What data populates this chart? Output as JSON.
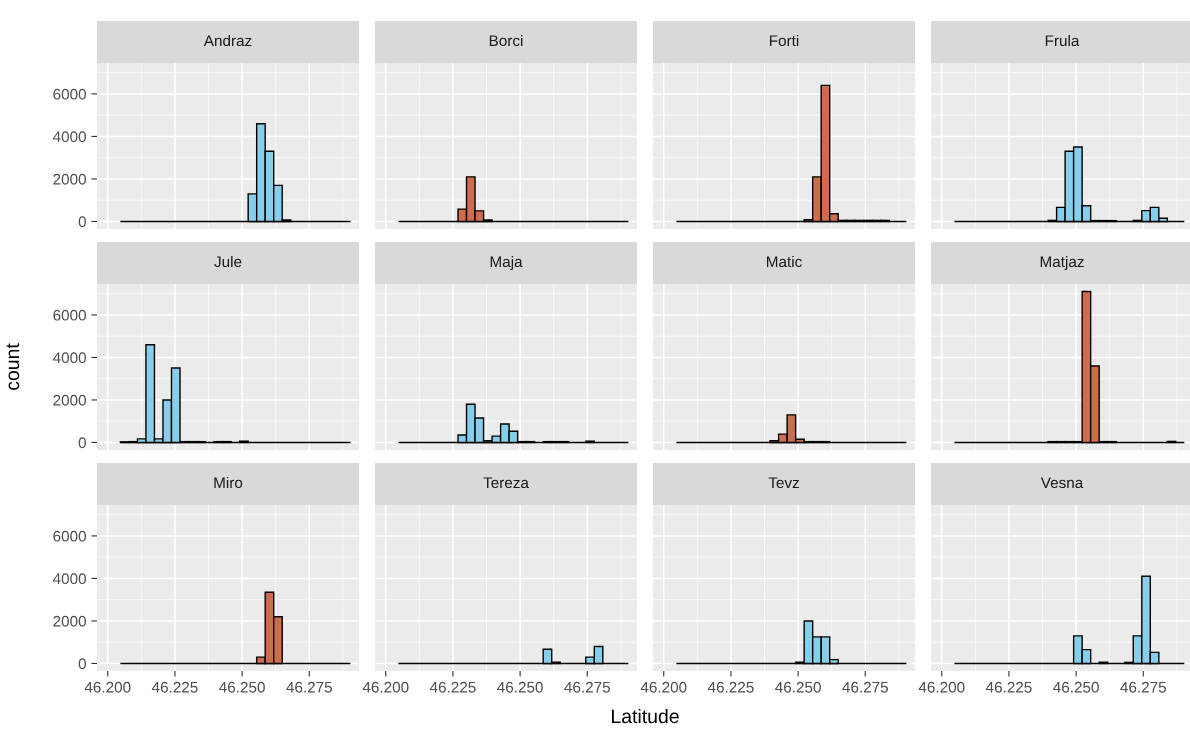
{
  "chart_data": [
    {
      "type": "histogram",
      "title": "Andraz",
      "color": "#87ceeb",
      "tick_labels": "y",
      "bins": [
        46.2047,
        46.20787,
        46.21104,
        46.21421,
        46.21738,
        46.22055,
        46.22372,
        46.22689,
        46.23006,
        46.23323,
        46.2364,
        46.23957,
        46.24274,
        46.24591,
        46.24908,
        46.25225,
        46.25542,
        46.25859,
        46.26176,
        46.26493,
        46.2681,
        46.27127,
        46.27444,
        46.27761,
        46.28078,
        46.28395,
        46.28712,
        46.29029
      ],
      "values": [
        0,
        0,
        0,
        0,
        0,
        0,
        0,
        0,
        0,
        0,
        0,
        0,
        0,
        0,
        0,
        1300,
        4600,
        3300,
        1700,
        70,
        0,
        0,
        0,
        0,
        0,
        0,
        0
      ],
      "xlim": [
        46.196,
        46.2935
      ],
      "xticks": [
        46.2,
        46.225,
        46.25,
        46.275
      ],
      "ylim": [
        -355,
        7455
      ],
      "yticks": [
        0,
        2000,
        4000,
        6000
      ],
      "grid": true
    },
    {
      "type": "histogram",
      "title": "Borci",
      "color": "#cd6c4e",
      "tick_labels": false,
      "bins": [
        46.2047,
        46.20787,
        46.21104,
        46.21421,
        46.21738,
        46.22055,
        46.22372,
        46.22689,
        46.23006,
        46.23323,
        46.2364,
        46.23957,
        46.24274,
        46.24591,
        46.24908,
        46.25225,
        46.25542,
        46.25859,
        46.26176,
        46.26493,
        46.2681,
        46.27127,
        46.27444,
        46.27761,
        46.28078,
        46.28395,
        46.28712,
        46.29029
      ],
      "values": [
        0,
        0,
        0,
        0,
        0,
        0,
        0,
        580,
        2100,
        500,
        70,
        0,
        0,
        0,
        0,
        0,
        0,
        0,
        0,
        0,
        0,
        0,
        0,
        0,
        0,
        0,
        0
      ],
      "xlim": [
        46.196,
        46.2935
      ],
      "xticks": [
        46.2,
        46.225,
        46.25,
        46.275
      ],
      "ylim": [
        -355,
        7455
      ],
      "yticks": [
        0,
        2000,
        4000,
        6000
      ],
      "grid": true
    },
    {
      "type": "histogram",
      "title": "Forti",
      "color": "#cd6c4e",
      "tick_labels": false,
      "bins": [
        46.2047,
        46.20787,
        46.21104,
        46.21421,
        46.21738,
        46.22055,
        46.22372,
        46.22689,
        46.23006,
        46.23323,
        46.2364,
        46.23957,
        46.24274,
        46.24591,
        46.24908,
        46.25225,
        46.25542,
        46.25859,
        46.26176,
        46.26493,
        46.2681,
        46.27127,
        46.27444,
        46.27761,
        46.28078,
        46.28395,
        46.28712,
        46.29029
      ],
      "values": [
        0,
        0,
        0,
        0,
        0,
        0,
        0,
        0,
        0,
        0,
        0,
        0,
        0,
        0,
        0,
        80,
        2100,
        6400,
        360,
        50,
        50,
        50,
        50,
        50,
        50,
        0,
        0
      ],
      "xlim": [
        46.196,
        46.2935
      ],
      "xticks": [
        46.2,
        46.225,
        46.25,
        46.275
      ],
      "ylim": [
        -355,
        7455
      ],
      "yticks": [
        0,
        2000,
        4000,
        6000
      ],
      "grid": true
    },
    {
      "type": "histogram",
      "title": "Frula",
      "color": "#87ceeb",
      "tick_labels": false,
      "bins": [
        46.2047,
        46.20787,
        46.21104,
        46.21421,
        46.21738,
        46.22055,
        46.22372,
        46.22689,
        46.23006,
        46.23323,
        46.2364,
        46.23957,
        46.24274,
        46.24591,
        46.24908,
        46.25225,
        46.25542,
        46.25859,
        46.26176,
        46.26493,
        46.2681,
        46.27127,
        46.27444,
        46.27761,
        46.28078,
        46.28395,
        46.28712,
        46.29029
      ],
      "values": [
        0,
        0,
        0,
        0,
        0,
        0,
        0,
        0,
        0,
        0,
        0,
        50,
        660,
        3300,
        3500,
        740,
        40,
        40,
        40,
        0,
        0,
        50,
        510,
        660,
        150,
        0,
        0
      ],
      "xlim": [
        46.196,
        46.2935
      ],
      "xticks": [
        46.2,
        46.225,
        46.25,
        46.275
      ],
      "ylim": [
        -355,
        7455
      ],
      "yticks": [
        0,
        2000,
        4000,
        6000
      ],
      "grid": true
    },
    {
      "type": "histogram",
      "title": "Jule",
      "ylabel": "count",
      "color": "#87ceeb",
      "tick_labels": "y",
      "bins": [
        46.2047,
        46.20787,
        46.21104,
        46.21421,
        46.21738,
        46.22055,
        46.22372,
        46.22689,
        46.23006,
        46.23323,
        46.2364,
        46.23957,
        46.24274,
        46.24591,
        46.24908,
        46.25225,
        46.25542,
        46.25859,
        46.26176,
        46.26493,
        46.2681,
        46.27127,
        46.27444,
        46.27761,
        46.28078,
        46.28395,
        46.28712,
        46.29029
      ],
      "values": [
        30,
        40,
        170,
        4600,
        170,
        2000,
        3500,
        40,
        40,
        40,
        0,
        40,
        40,
        0,
        60,
        0,
        0,
        0,
        0,
        0,
        0,
        0,
        0,
        0,
        0,
        0,
        0
      ],
      "xlim": [
        46.196,
        46.2935
      ],
      "xticks": [
        46.2,
        46.225,
        46.25,
        46.275
      ],
      "ylim": [
        -355,
        7455
      ],
      "yticks": [
        0,
        2000,
        4000,
        6000
      ],
      "grid": true
    },
    {
      "type": "histogram",
      "title": "Maja",
      "color": "#87ceeb",
      "tick_labels": false,
      "bins": [
        46.2047,
        46.20787,
        46.21104,
        46.21421,
        46.21738,
        46.22055,
        46.22372,
        46.22689,
        46.23006,
        46.23323,
        46.2364,
        46.23957,
        46.24274,
        46.24591,
        46.24908,
        46.25225,
        46.25542,
        46.25859,
        46.26176,
        46.26493,
        46.2681,
        46.27127,
        46.27444,
        46.27761,
        46.28078,
        46.28395,
        46.28712,
        46.29029
      ],
      "values": [
        0,
        0,
        0,
        0,
        0,
        0,
        0,
        350,
        1800,
        1150,
        80,
        300,
        870,
        530,
        40,
        40,
        0,
        40,
        40,
        40,
        0,
        0,
        60,
        0,
        0,
        0,
        0
      ],
      "xlim": [
        46.196,
        46.2935
      ],
      "xticks": [
        46.2,
        46.225,
        46.25,
        46.275
      ],
      "ylim": [
        -355,
        7455
      ],
      "yticks": [
        0,
        2000,
        4000,
        6000
      ],
      "grid": true
    },
    {
      "type": "histogram",
      "title": "Matic",
      "color": "#cd6c4e",
      "tick_labels": false,
      "bins": [
        46.2047,
        46.20787,
        46.21104,
        46.21421,
        46.21738,
        46.22055,
        46.22372,
        46.22689,
        46.23006,
        46.23323,
        46.2364,
        46.23957,
        46.24274,
        46.24591,
        46.24908,
        46.25225,
        46.25542,
        46.25859,
        46.26176,
        46.26493,
        46.2681,
        46.27127,
        46.27444,
        46.27761,
        46.28078,
        46.28395,
        46.28712,
        46.29029
      ],
      "values": [
        0,
        0,
        0,
        0,
        0,
        0,
        0,
        0,
        0,
        0,
        0,
        80,
        390,
        1300,
        150,
        40,
        40,
        40,
        0,
        0,
        0,
        0,
        0,
        0,
        0,
        0,
        0
      ],
      "xlim": [
        46.196,
        46.2935
      ],
      "xticks": [
        46.2,
        46.225,
        46.25,
        46.275
      ],
      "ylim": [
        -355,
        7455
      ],
      "yticks": [
        0,
        2000,
        4000,
        6000
      ],
      "grid": true
    },
    {
      "type": "histogram",
      "title": "Matjaz",
      "color": "#cd6c4e",
      "tick_labels": false,
      "bins": [
        46.2047,
        46.20787,
        46.21104,
        46.21421,
        46.21738,
        46.22055,
        46.22372,
        46.22689,
        46.23006,
        46.23323,
        46.2364,
        46.23957,
        46.24274,
        46.24591,
        46.24908,
        46.25225,
        46.25542,
        46.25859,
        46.26176,
        46.26493,
        46.2681,
        46.27127,
        46.27444,
        46.27761,
        46.28078,
        46.28395,
        46.28712,
        46.29029
      ],
      "values": [
        0,
        0,
        0,
        0,
        0,
        0,
        0,
        0,
        0,
        0,
        0,
        40,
        40,
        40,
        40,
        7100,
        3600,
        40,
        40,
        0,
        0,
        0,
        0,
        0,
        0,
        50,
        0
      ],
      "xlim": [
        46.196,
        46.2935
      ],
      "xticks": [
        46.2,
        46.225,
        46.25,
        46.275
      ],
      "ylim": [
        -355,
        7455
      ],
      "yticks": [
        0,
        2000,
        4000,
        6000
      ],
      "grid": true
    },
    {
      "type": "histogram",
      "title": "Miro",
      "color": "#cd6c4e",
      "bins": [
        46.2047,
        46.20787,
        46.21104,
        46.21421,
        46.21738,
        46.22055,
        46.22372,
        46.22689,
        46.23006,
        46.23323,
        46.2364,
        46.23957,
        46.24274,
        46.24591,
        46.24908,
        46.25225,
        46.25542,
        46.25859,
        46.26176,
        46.26493,
        46.2681,
        46.27127,
        46.27444,
        46.27761,
        46.28078,
        46.28395,
        46.28712,
        46.29029
      ],
      "values": [
        0,
        0,
        0,
        0,
        0,
        0,
        0,
        0,
        0,
        0,
        0,
        0,
        0,
        0,
        0,
        0,
        300,
        3350,
        2200,
        0,
        0,
        0,
        0,
        0,
        0,
        0,
        0
      ],
      "xlim": [
        46.196,
        46.2935
      ],
      "xticks": [
        {
          "value": 46.2,
          "label": "46.200"
        },
        {
          "value": 46.225,
          "label": "46.225"
        },
        {
          "value": 46.25,
          "label": "46.250"
        },
        {
          "value": 46.275,
          "label": "46.275"
        }
      ],
      "ylim": [
        -355,
        7455
      ],
      "yticks": [
        0,
        2000,
        4000,
        6000
      ],
      "grid": true
    },
    {
      "type": "histogram",
      "title": "Tereza",
      "xlabel": "Latitude",
      "color": "#87ceeb",
      "tick_labels": "x",
      "bins": [
        46.2047,
        46.20787,
        46.21104,
        46.21421,
        46.21738,
        46.22055,
        46.22372,
        46.22689,
        46.23006,
        46.23323,
        46.2364,
        46.23957,
        46.24274,
        46.24591,
        46.24908,
        46.25225,
        46.25542,
        46.25859,
        46.26176,
        46.26493,
        46.2681,
        46.27127,
        46.27444,
        46.27761,
        46.28078,
        46.28395,
        46.28712,
        46.29029
      ],
      "values": [
        0,
        0,
        0,
        0,
        0,
        0,
        0,
        0,
        0,
        0,
        0,
        0,
        0,
        0,
        0,
        0,
        0,
        670,
        60,
        0,
        0,
        0,
        300,
        800,
        0,
        0,
        0
      ],
      "xlim": [
        46.196,
        46.2935
      ],
      "xticks": [
        {
          "value": 46.2,
          "label": "46.200"
        },
        {
          "value": 46.225,
          "label": "46.225"
        },
        {
          "value": 46.25,
          "label": "46.250"
        },
        {
          "value": 46.275,
          "label": "46.275"
        }
      ],
      "ylim": [
        -355,
        7455
      ],
      "yticks": [
        0,
        2000,
        4000,
        6000
      ],
      "grid": true
    },
    {
      "type": "histogram",
      "title": "Tevz",
      "color": "#87ceeb",
      "tick_labels": "x",
      "bins": [
        46.2047,
        46.20787,
        46.21104,
        46.21421,
        46.21738,
        46.22055,
        46.22372,
        46.22689,
        46.23006,
        46.23323,
        46.2364,
        46.23957,
        46.24274,
        46.24591,
        46.24908,
        46.25225,
        46.25542,
        46.25859,
        46.26176,
        46.26493,
        46.2681,
        46.27127,
        46.27444,
        46.27761,
        46.28078,
        46.28395,
        46.28712,
        46.29029
      ],
      "values": [
        0,
        0,
        0,
        0,
        0,
        0,
        0,
        0,
        0,
        0,
        0,
        0,
        0,
        0,
        60,
        2000,
        1250,
        1250,
        180,
        0,
        0,
        0,
        0,
        0,
        0,
        0,
        0
      ],
      "xlim": [
        46.196,
        46.2935
      ],
      "xticks": [
        {
          "value": 46.2,
          "label": "46.200"
        },
        {
          "value": 46.225,
          "label": "46.225"
        },
        {
          "value": 46.25,
          "label": "46.250"
        },
        {
          "value": 46.275,
          "label": "46.275"
        }
      ],
      "ylim": [
        -355,
        7455
      ],
      "yticks": [
        0,
        2000,
        4000,
        6000
      ],
      "grid": true
    },
    {
      "type": "histogram",
      "title": "Vesna",
      "color": "#87ceeb",
      "tick_labels": "x",
      "bins": [
        46.2047,
        46.20787,
        46.21104,
        46.21421,
        46.21738,
        46.22055,
        46.22372,
        46.22689,
        46.23006,
        46.23323,
        46.2364,
        46.23957,
        46.24274,
        46.24591,
        46.24908,
        46.25225,
        46.25542,
        46.25859,
        46.26176,
        46.26493,
        46.2681,
        46.27127,
        46.27444,
        46.27761,
        46.28078,
        46.28395,
        46.28712,
        46.29029
      ],
      "values": [
        0,
        0,
        0,
        0,
        0,
        0,
        0,
        0,
        0,
        0,
        0,
        0,
        0,
        0,
        1300,
        650,
        0,
        60,
        0,
        0,
        50,
        1300,
        4100,
        520,
        0,
        0,
        0
      ],
      "xlim": [
        46.196,
        46.2935
      ],
      "xticks": [
        {
          "value": 46.2,
          "label": "46.200"
        },
        {
          "value": 46.225,
          "label": "46.225"
        },
        {
          "value": 46.25,
          "label": "46.250"
        },
        {
          "value": 46.275,
          "label": "46.275"
        }
      ],
      "ylim": [
        -355,
        7455
      ],
      "yticks": [
        0,
        2000,
        4000,
        6000
      ],
      "grid": true
    }
  ]
}
